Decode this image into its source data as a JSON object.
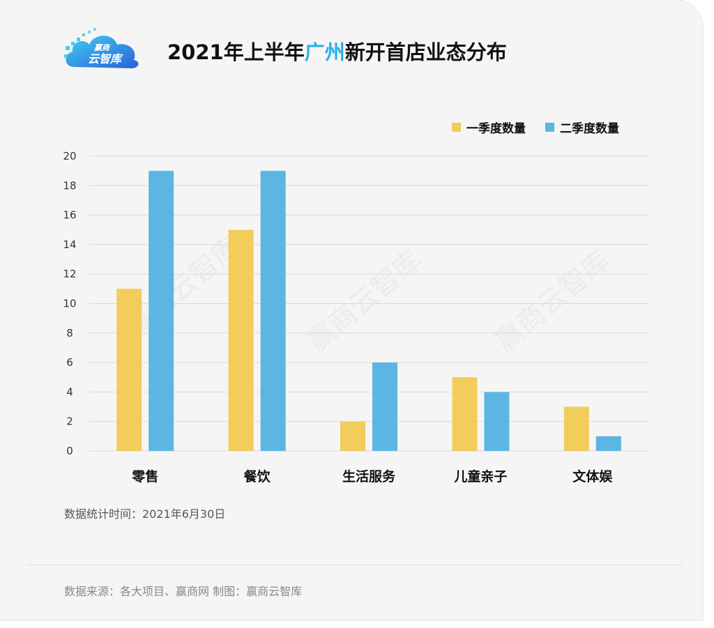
{
  "logo": {
    "line1": "赢商",
    "line2": "云智库"
  },
  "title": {
    "before": "2021年上半年",
    "highlight": "广州",
    "after": "新开首店业态分布"
  },
  "watermark": "赢商云智库",
  "colors": {
    "q1": "#f2cd5c",
    "q2": "#5bb6e3",
    "highlight": "#2ab0e8",
    "grid": "#d9d9d9"
  },
  "chart_data": {
    "type": "bar",
    "categories": [
      "零售",
      "餐饮",
      "生活服务",
      "儿童亲子",
      "文体娱"
    ],
    "series": [
      {
        "name": "一季度数量",
        "values": [
          11,
          15,
          2,
          5,
          3
        ]
      },
      {
        "name": "二季度数量",
        "values": [
          19,
          19,
          6,
          4,
          1
        ]
      }
    ],
    "yticks": [
      "0",
      "2",
      "4",
      "6",
      "8",
      "10",
      "12",
      "14",
      "16",
      "18",
      "20"
    ],
    "ylim": [
      0,
      20
    ],
    "grid": true,
    "legend": "top-right"
  },
  "note": "数据统计时间：2021年6月30日",
  "source": "数据来源：各大项目、赢商网  制图：赢商云智库"
}
